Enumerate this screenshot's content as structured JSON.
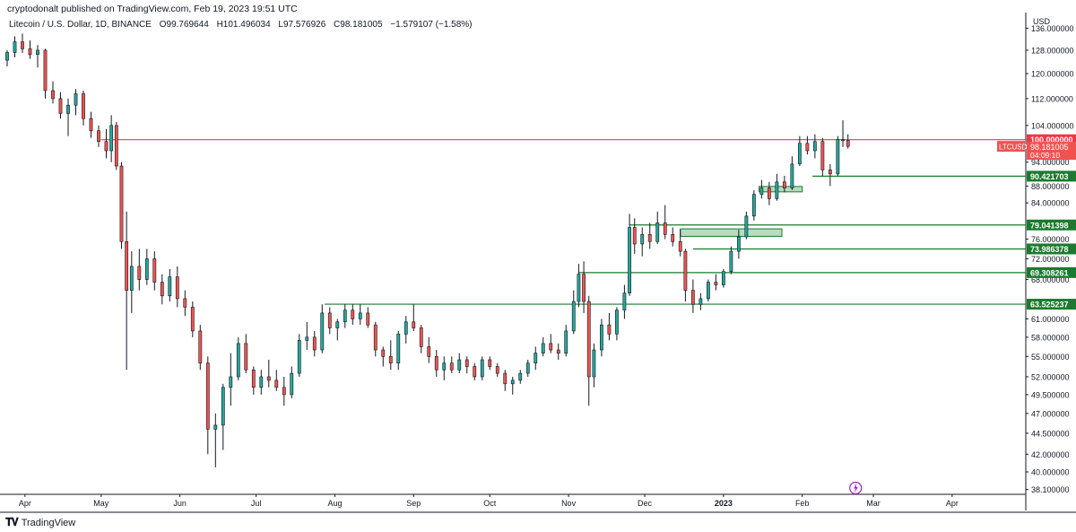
{
  "publisher_line": "cryptodonalt published on TradingView.com, Feb 19, 2023 19:51 UTC",
  "legend": {
    "symbol": "Litecoin / U.S. Dollar, 1D, BINANCE",
    "open": "O99.769644",
    "high": "H101.496034",
    "low": "L97.576926",
    "close": "C98.181005",
    "change": "−1.579107 (−1.58%)"
  },
  "footer": {
    "brand": "TradingView"
  },
  "colors": {
    "up": "#26a69a",
    "down": "#ef5350",
    "candle_body_up": "#ffffff",
    "wick": "#131722",
    "resistance": "#f23645",
    "support": "#1b7a2e",
    "zone_fill": "#b7dcc0",
    "axis_text": "#131722"
  },
  "chart_data": {
    "type": "candlestick",
    "symbol": "LTCUSD",
    "currency_label": "USD",
    "x_start": "2022-03-25",
    "x_end": "2023-04-30",
    "x_tick_labels": [
      "Apr",
      "May",
      "Jun",
      "Jul",
      "Aug",
      "Sep",
      "Oct",
      "Nov",
      "Dec",
      "2023",
      "Feb",
      "Mar",
      "Apr"
    ],
    "y_tick_labels": [
      "136.000000",
      "128.000000",
      "120.000000",
      "112.000000",
      "104.000000",
      "94.000000",
      "88.000000",
      "84.000000",
      "76.000000",
      "72.000000",
      "68.000000",
      "61.000000",
      "58.000000",
      "55.000000",
      "52.000000",
      "49.500000",
      "47.000000",
      "44.500000",
      "42.000000",
      "40.000000",
      "38.100000"
    ],
    "y_scale": "log",
    "ylim": [
      37.6,
      142
    ],
    "ohlc_summary": {
      "open": 99.769644,
      "high": 101.496034,
      "low": 97.576926,
      "close": 98.181005,
      "change": -1.579107,
      "change_pct": -1.58
    },
    "current_price": {
      "value": 98.181005,
      "label": "LTCUSD",
      "price_text": "98.181005",
      "countdown": "04:09:10"
    },
    "horizontal_levels": [
      {
        "value": 100.0,
        "label": "100.000000",
        "kind": "resistance",
        "from_date": "2022-05-01"
      },
      {
        "value": 90.421703,
        "label": "90.421703",
        "kind": "support",
        "from_date": "2023-02-05"
      },
      {
        "value": 79.041398,
        "label": "79.041398",
        "kind": "support",
        "from_date": "2022-11-25"
      },
      {
        "value": 73.986378,
        "label": "73.986378",
        "kind": "support",
        "from_date": "2022-12-20"
      },
      {
        "value": 69.308261,
        "label": "69.308261",
        "kind": "support",
        "from_date": "2022-11-05"
      },
      {
        "value": 63.525237,
        "label": "63.525237",
        "kind": "support",
        "from_date": "2022-07-28"
      }
    ],
    "zones": [
      {
        "from_date": "2022-12-15",
        "to_date": "2023-01-24",
        "low": 76.6,
        "high": 78.2
      },
      {
        "from_date": "2023-01-15",
        "to_date": "2023-02-01",
        "low": 86.6,
        "high": 87.9
      }
    ],
    "candles": [
      {
        "t": "2022-03-25",
        "o": 124.5,
        "h": 128.0,
        "l": 122.4,
        "c": 127.2
      },
      {
        "t": "2022-03-28",
        "o": 127.2,
        "h": 133.0,
        "l": 125.5,
        "c": 131.0
      },
      {
        "t": "2022-03-31",
        "o": 131.0,
        "h": 134.0,
        "l": 127.0,
        "c": 128.5
      },
      {
        "t": "2022-04-03",
        "o": 128.5,
        "h": 131.5,
        "l": 125.0,
        "c": 126.5
      },
      {
        "t": "2022-04-06",
        "o": 126.5,
        "h": 129.8,
        "l": 122.0,
        "c": 128.0
      },
      {
        "t": "2022-04-09",
        "o": 128.0,
        "h": 128.5,
        "l": 112.0,
        "c": 114.5
      },
      {
        "t": "2022-04-12",
        "o": 114.5,
        "h": 117.5,
        "l": 110.5,
        "c": 112.0
      },
      {
        "t": "2022-04-15",
        "o": 112.0,
        "h": 114.0,
        "l": 106.0,
        "c": 107.5
      },
      {
        "t": "2022-04-18",
        "o": 107.5,
        "h": 112.0,
        "l": 101.0,
        "c": 110.0
      },
      {
        "t": "2022-04-21",
        "o": 110.0,
        "h": 115.0,
        "l": 107.0,
        "c": 113.5
      },
      {
        "t": "2022-04-24",
        "o": 113.5,
        "h": 114.5,
        "l": 104.0,
        "c": 106.0
      },
      {
        "t": "2022-04-27",
        "o": 106.0,
        "h": 108.0,
        "l": 100.5,
        "c": 102.5
      },
      {
        "t": "2022-04-30",
        "o": 102.5,
        "h": 104.0,
        "l": 98.0,
        "c": 99.5
      },
      {
        "t": "2022-05-03",
        "o": 99.5,
        "h": 103.0,
        "l": 95.0,
        "c": 97.0
      },
      {
        "t": "2022-05-05",
        "o": 97.0,
        "h": 107.0,
        "l": 94.0,
        "c": 104.0
      },
      {
        "t": "2022-05-07",
        "o": 104.0,
        "h": 105.0,
        "l": 92.0,
        "c": 93.0
      },
      {
        "t": "2022-05-09",
        "o": 93.0,
        "h": 94.0,
        "l": 74.0,
        "c": 75.5
      },
      {
        "t": "2022-05-11",
        "o": 75.5,
        "h": 82.0,
        "l": 53.0,
        "c": 66.0
      },
      {
        "t": "2022-05-13",
        "o": 66.0,
        "h": 73.5,
        "l": 62.0,
        "c": 70.5
      },
      {
        "t": "2022-05-16",
        "o": 70.5,
        "h": 74.0,
        "l": 66.0,
        "c": 68.0
      },
      {
        "t": "2022-05-19",
        "o": 68.0,
        "h": 74.0,
        "l": 67.0,
        "c": 72.0
      },
      {
        "t": "2022-05-22",
        "o": 72.0,
        "h": 73.5,
        "l": 66.0,
        "c": 67.5
      },
      {
        "t": "2022-05-25",
        "o": 67.5,
        "h": 69.0,
        "l": 63.5,
        "c": 65.0
      },
      {
        "t": "2022-05-28",
        "o": 65.0,
        "h": 70.0,
        "l": 64.0,
        "c": 68.5
      },
      {
        "t": "2022-05-31",
        "o": 68.5,
        "h": 70.5,
        "l": 63.0,
        "c": 64.5
      },
      {
        "t": "2022-06-03",
        "o": 64.5,
        "h": 66.0,
        "l": 61.5,
        "c": 63.0
      },
      {
        "t": "2022-06-06",
        "o": 63.0,
        "h": 64.0,
        "l": 58.0,
        "c": 59.0
      },
      {
        "t": "2022-06-09",
        "o": 59.0,
        "h": 60.0,
        "l": 53.0,
        "c": 54.0
      },
      {
        "t": "2022-06-12",
        "o": 54.0,
        "h": 55.0,
        "l": 42.0,
        "c": 45.0
      },
      {
        "t": "2022-06-15",
        "o": 45.0,
        "h": 47.0,
        "l": 40.5,
        "c": 45.5
      },
      {
        "t": "2022-06-18",
        "o": 45.5,
        "h": 51.0,
        "l": 42.5,
        "c": 50.5
      },
      {
        "t": "2022-06-21",
        "o": 50.5,
        "h": 55.5,
        "l": 48.0,
        "c": 52.0
      },
      {
        "t": "2022-06-24",
        "o": 52.0,
        "h": 58.0,
        "l": 51.5,
        "c": 57.0
      },
      {
        "t": "2022-06-27",
        "o": 57.0,
        "h": 58.5,
        "l": 52.5,
        "c": 53.0
      },
      {
        "t": "2022-06-30",
        "o": 53.0,
        "h": 53.5,
        "l": 49.5,
        "c": 50.5
      },
      {
        "t": "2022-07-03",
        "o": 50.5,
        "h": 53.0,
        "l": 49.5,
        "c": 52.0
      },
      {
        "t": "2022-07-06",
        "o": 52.0,
        "h": 54.5,
        "l": 50.5,
        "c": 51.5
      },
      {
        "t": "2022-07-09",
        "o": 51.5,
        "h": 53.0,
        "l": 50.0,
        "c": 50.5
      },
      {
        "t": "2022-07-12",
        "o": 50.5,
        "h": 52.0,
        "l": 48.0,
        "c": 49.5
      },
      {
        "t": "2022-07-15",
        "o": 49.5,
        "h": 53.5,
        "l": 49.0,
        "c": 52.5
      },
      {
        "t": "2022-07-18",
        "o": 52.5,
        "h": 58.5,
        "l": 52.0,
        "c": 57.5
      },
      {
        "t": "2022-07-21",
        "o": 57.5,
        "h": 60.5,
        "l": 56.0,
        "c": 58.0
      },
      {
        "t": "2022-07-24",
        "o": 58.0,
        "h": 59.0,
        "l": 55.0,
        "c": 56.0
      },
      {
        "t": "2022-07-27",
        "o": 56.0,
        "h": 63.5,
        "l": 55.5,
        "c": 62.0
      },
      {
        "t": "2022-07-30",
        "o": 62.0,
        "h": 63.0,
        "l": 58.5,
        "c": 59.5
      },
      {
        "t": "2022-08-02",
        "o": 59.5,
        "h": 61.0,
        "l": 57.5,
        "c": 60.5
      },
      {
        "t": "2022-08-05",
        "o": 60.5,
        "h": 63.5,
        "l": 59.5,
        "c": 62.5
      },
      {
        "t": "2022-08-08",
        "o": 62.5,
        "h": 63.5,
        "l": 60.0,
        "c": 61.0
      },
      {
        "t": "2022-08-11",
        "o": 61.0,
        "h": 63.5,
        "l": 60.0,
        "c": 62.0
      },
      {
        "t": "2022-08-14",
        "o": 62.0,
        "h": 63.0,
        "l": 59.5,
        "c": 60.0
      },
      {
        "t": "2022-08-17",
        "o": 60.0,
        "h": 60.5,
        "l": 55.0,
        "c": 56.0
      },
      {
        "t": "2022-08-20",
        "o": 56.0,
        "h": 56.5,
        "l": 53.5,
        "c": 55.0
      },
      {
        "t": "2022-08-23",
        "o": 55.0,
        "h": 57.5,
        "l": 53.0,
        "c": 54.0
      },
      {
        "t": "2022-08-26",
        "o": 54.0,
        "h": 59.0,
        "l": 53.0,
        "c": 58.5
      },
      {
        "t": "2022-08-29",
        "o": 58.5,
        "h": 61.5,
        "l": 57.0,
        "c": 60.5
      },
      {
        "t": "2022-09-01",
        "o": 60.5,
        "h": 63.5,
        "l": 59.0,
        "c": 59.5
      },
      {
        "t": "2022-09-04",
        "o": 59.5,
        "h": 60.0,
        "l": 55.5,
        "c": 56.5
      },
      {
        "t": "2022-09-07",
        "o": 56.5,
        "h": 58.0,
        "l": 54.0,
        "c": 55.0
      },
      {
        "t": "2022-09-10",
        "o": 55.0,
        "h": 56.0,
        "l": 52.0,
        "c": 53.0
      },
      {
        "t": "2022-09-13",
        "o": 53.0,
        "h": 55.0,
        "l": 51.5,
        "c": 54.0
      },
      {
        "t": "2022-09-16",
        "o": 54.0,
        "h": 55.0,
        "l": 52.5,
        "c": 53.0
      },
      {
        "t": "2022-09-19",
        "o": 53.0,
        "h": 55.5,
        "l": 52.5,
        "c": 54.5
      },
      {
        "t": "2022-09-22",
        "o": 54.5,
        "h": 55.0,
        "l": 52.5,
        "c": 53.5
      },
      {
        "t": "2022-09-25",
        "o": 53.5,
        "h": 54.0,
        "l": 51.5,
        "c": 52.0
      },
      {
        "t": "2022-09-28",
        "o": 52.0,
        "h": 55.0,
        "l": 51.5,
        "c": 54.5
      },
      {
        "t": "2022-10-01",
        "o": 54.5,
        "h": 55.0,
        "l": 53.0,
        "c": 53.5
      },
      {
        "t": "2022-10-04",
        "o": 53.5,
        "h": 54.0,
        "l": 52.0,
        "c": 52.5
      },
      {
        "t": "2022-10-07",
        "o": 52.5,
        "h": 53.0,
        "l": 50.0,
        "c": 51.0
      },
      {
        "t": "2022-10-10",
        "o": 51.0,
        "h": 52.0,
        "l": 49.5,
        "c": 51.5
      },
      {
        "t": "2022-10-13",
        "o": 51.5,
        "h": 53.0,
        "l": 51.0,
        "c": 52.5
      },
      {
        "t": "2022-10-16",
        "o": 52.5,
        "h": 54.5,
        "l": 52.0,
        "c": 54.0
      },
      {
        "t": "2022-10-19",
        "o": 54.0,
        "h": 56.5,
        "l": 53.0,
        "c": 55.5
      },
      {
        "t": "2022-10-22",
        "o": 55.5,
        "h": 58.0,
        "l": 55.0,
        "c": 57.0
      },
      {
        "t": "2022-10-25",
        "o": 57.0,
        "h": 58.5,
        "l": 55.5,
        "c": 56.0
      },
      {
        "t": "2022-10-28",
        "o": 56.0,
        "h": 57.0,
        "l": 54.5,
        "c": 55.5
      },
      {
        "t": "2022-10-31",
        "o": 55.5,
        "h": 60.0,
        "l": 55.0,
        "c": 59.0
      },
      {
        "t": "2022-11-03",
        "o": 59.0,
        "h": 66.0,
        "l": 58.5,
        "c": 64.0
      },
      {
        "t": "2022-11-05",
        "o": 64.0,
        "h": 71.0,
        "l": 63.0,
        "c": 69.0
      },
      {
        "t": "2022-11-07",
        "o": 69.0,
        "h": 71.5,
        "l": 62.0,
        "c": 64.0
      },
      {
        "t": "2022-11-09",
        "o": 64.0,
        "h": 65.0,
        "l": 48.0,
        "c": 52.0
      },
      {
        "t": "2022-11-11",
        "o": 52.0,
        "h": 57.0,
        "l": 50.5,
        "c": 56.0
      },
      {
        "t": "2022-11-14",
        "o": 56.0,
        "h": 61.0,
        "l": 55.0,
        "c": 60.0
      },
      {
        "t": "2022-11-17",
        "o": 60.0,
        "h": 62.0,
        "l": 57.5,
        "c": 58.5
      },
      {
        "t": "2022-11-20",
        "o": 58.5,
        "h": 63.0,
        "l": 57.5,
        "c": 62.5
      },
      {
        "t": "2022-11-23",
        "o": 62.5,
        "h": 67.0,
        "l": 61.0,
        "c": 65.5
      },
      {
        "t": "2022-11-25",
        "o": 65.5,
        "h": 81.5,
        "l": 65.0,
        "c": 78.5
      },
      {
        "t": "2022-11-27",
        "o": 78.5,
        "h": 80.5,
        "l": 73.0,
        "c": 75.0
      },
      {
        "t": "2022-11-30",
        "o": 75.0,
        "h": 78.5,
        "l": 72.5,
        "c": 77.0
      },
      {
        "t": "2022-12-03",
        "o": 77.0,
        "h": 79.5,
        "l": 74.0,
        "c": 75.5
      },
      {
        "t": "2022-12-06",
        "o": 75.5,
        "h": 82.0,
        "l": 75.0,
        "c": 79.5
      },
      {
        "t": "2022-12-09",
        "o": 79.5,
        "h": 83.5,
        "l": 76.0,
        "c": 77.0
      },
      {
        "t": "2022-12-12",
        "o": 77.0,
        "h": 78.5,
        "l": 74.5,
        "c": 75.5
      },
      {
        "t": "2022-12-15",
        "o": 75.5,
        "h": 78.0,
        "l": 72.5,
        "c": 73.5
      },
      {
        "t": "2022-12-17",
        "o": 73.5,
        "h": 74.0,
        "l": 64.0,
        "c": 66.0
      },
      {
        "t": "2022-12-20",
        "o": 66.0,
        "h": 68.0,
        "l": 62.0,
        "c": 63.5
      },
      {
        "t": "2022-12-23",
        "o": 63.5,
        "h": 65.5,
        "l": 62.5,
        "c": 64.5
      },
      {
        "t": "2022-12-26",
        "o": 64.5,
        "h": 68.0,
        "l": 64.0,
        "c": 67.5
      },
      {
        "t": "2022-12-29",
        "o": 67.5,
        "h": 69.0,
        "l": 66.0,
        "c": 67.0
      },
      {
        "t": "2023-01-01",
        "o": 67.0,
        "h": 70.0,
        "l": 66.5,
        "c": 69.5
      },
      {
        "t": "2023-01-04",
        "o": 69.5,
        "h": 74.5,
        "l": 69.0,
        "c": 73.5
      },
      {
        "t": "2023-01-07",
        "o": 73.5,
        "h": 78.0,
        "l": 72.0,
        "c": 76.5
      },
      {
        "t": "2023-01-10",
        "o": 76.5,
        "h": 82.0,
        "l": 76.0,
        "c": 81.0
      },
      {
        "t": "2023-01-13",
        "o": 81.0,
        "h": 87.0,
        "l": 80.0,
        "c": 86.0
      },
      {
        "t": "2023-01-16",
        "o": 86.0,
        "h": 89.5,
        "l": 85.0,
        "c": 87.5
      },
      {
        "t": "2023-01-19",
        "o": 87.5,
        "h": 89.0,
        "l": 83.5,
        "c": 85.0
      },
      {
        "t": "2023-01-22",
        "o": 85.0,
        "h": 91.0,
        "l": 84.5,
        "c": 89.0
      },
      {
        "t": "2023-01-25",
        "o": 89.0,
        "h": 90.5,
        "l": 86.5,
        "c": 87.5
      },
      {
        "t": "2023-01-28",
        "o": 87.5,
        "h": 95.5,
        "l": 87.0,
        "c": 93.5
      },
      {
        "t": "2023-01-31",
        "o": 93.5,
        "h": 101.0,
        "l": 93.0,
        "c": 99.0
      },
      {
        "t": "2023-02-03",
        "o": 99.0,
        "h": 101.0,
        "l": 96.0,
        "c": 97.0
      },
      {
        "t": "2023-02-06",
        "o": 97.0,
        "h": 101.5,
        "l": 95.0,
        "c": 99.5
      },
      {
        "t": "2023-02-09",
        "o": 99.5,
        "h": 100.5,
        "l": 90.5,
        "c": 92.0
      },
      {
        "t": "2023-02-12",
        "o": 92.0,
        "h": 93.5,
        "l": 88.0,
        "c": 91.0
      },
      {
        "t": "2023-02-15",
        "o": 91.0,
        "h": 101.0,
        "l": 90.5,
        "c": 100.0
      },
      {
        "t": "2023-02-17",
        "o": 100.0,
        "h": 105.5,
        "l": 98.0,
        "c": 99.8
      },
      {
        "t": "2023-02-19",
        "o": 99.769644,
        "h": 101.496034,
        "l": 97.576926,
        "c": 98.181005
      }
    ]
  }
}
